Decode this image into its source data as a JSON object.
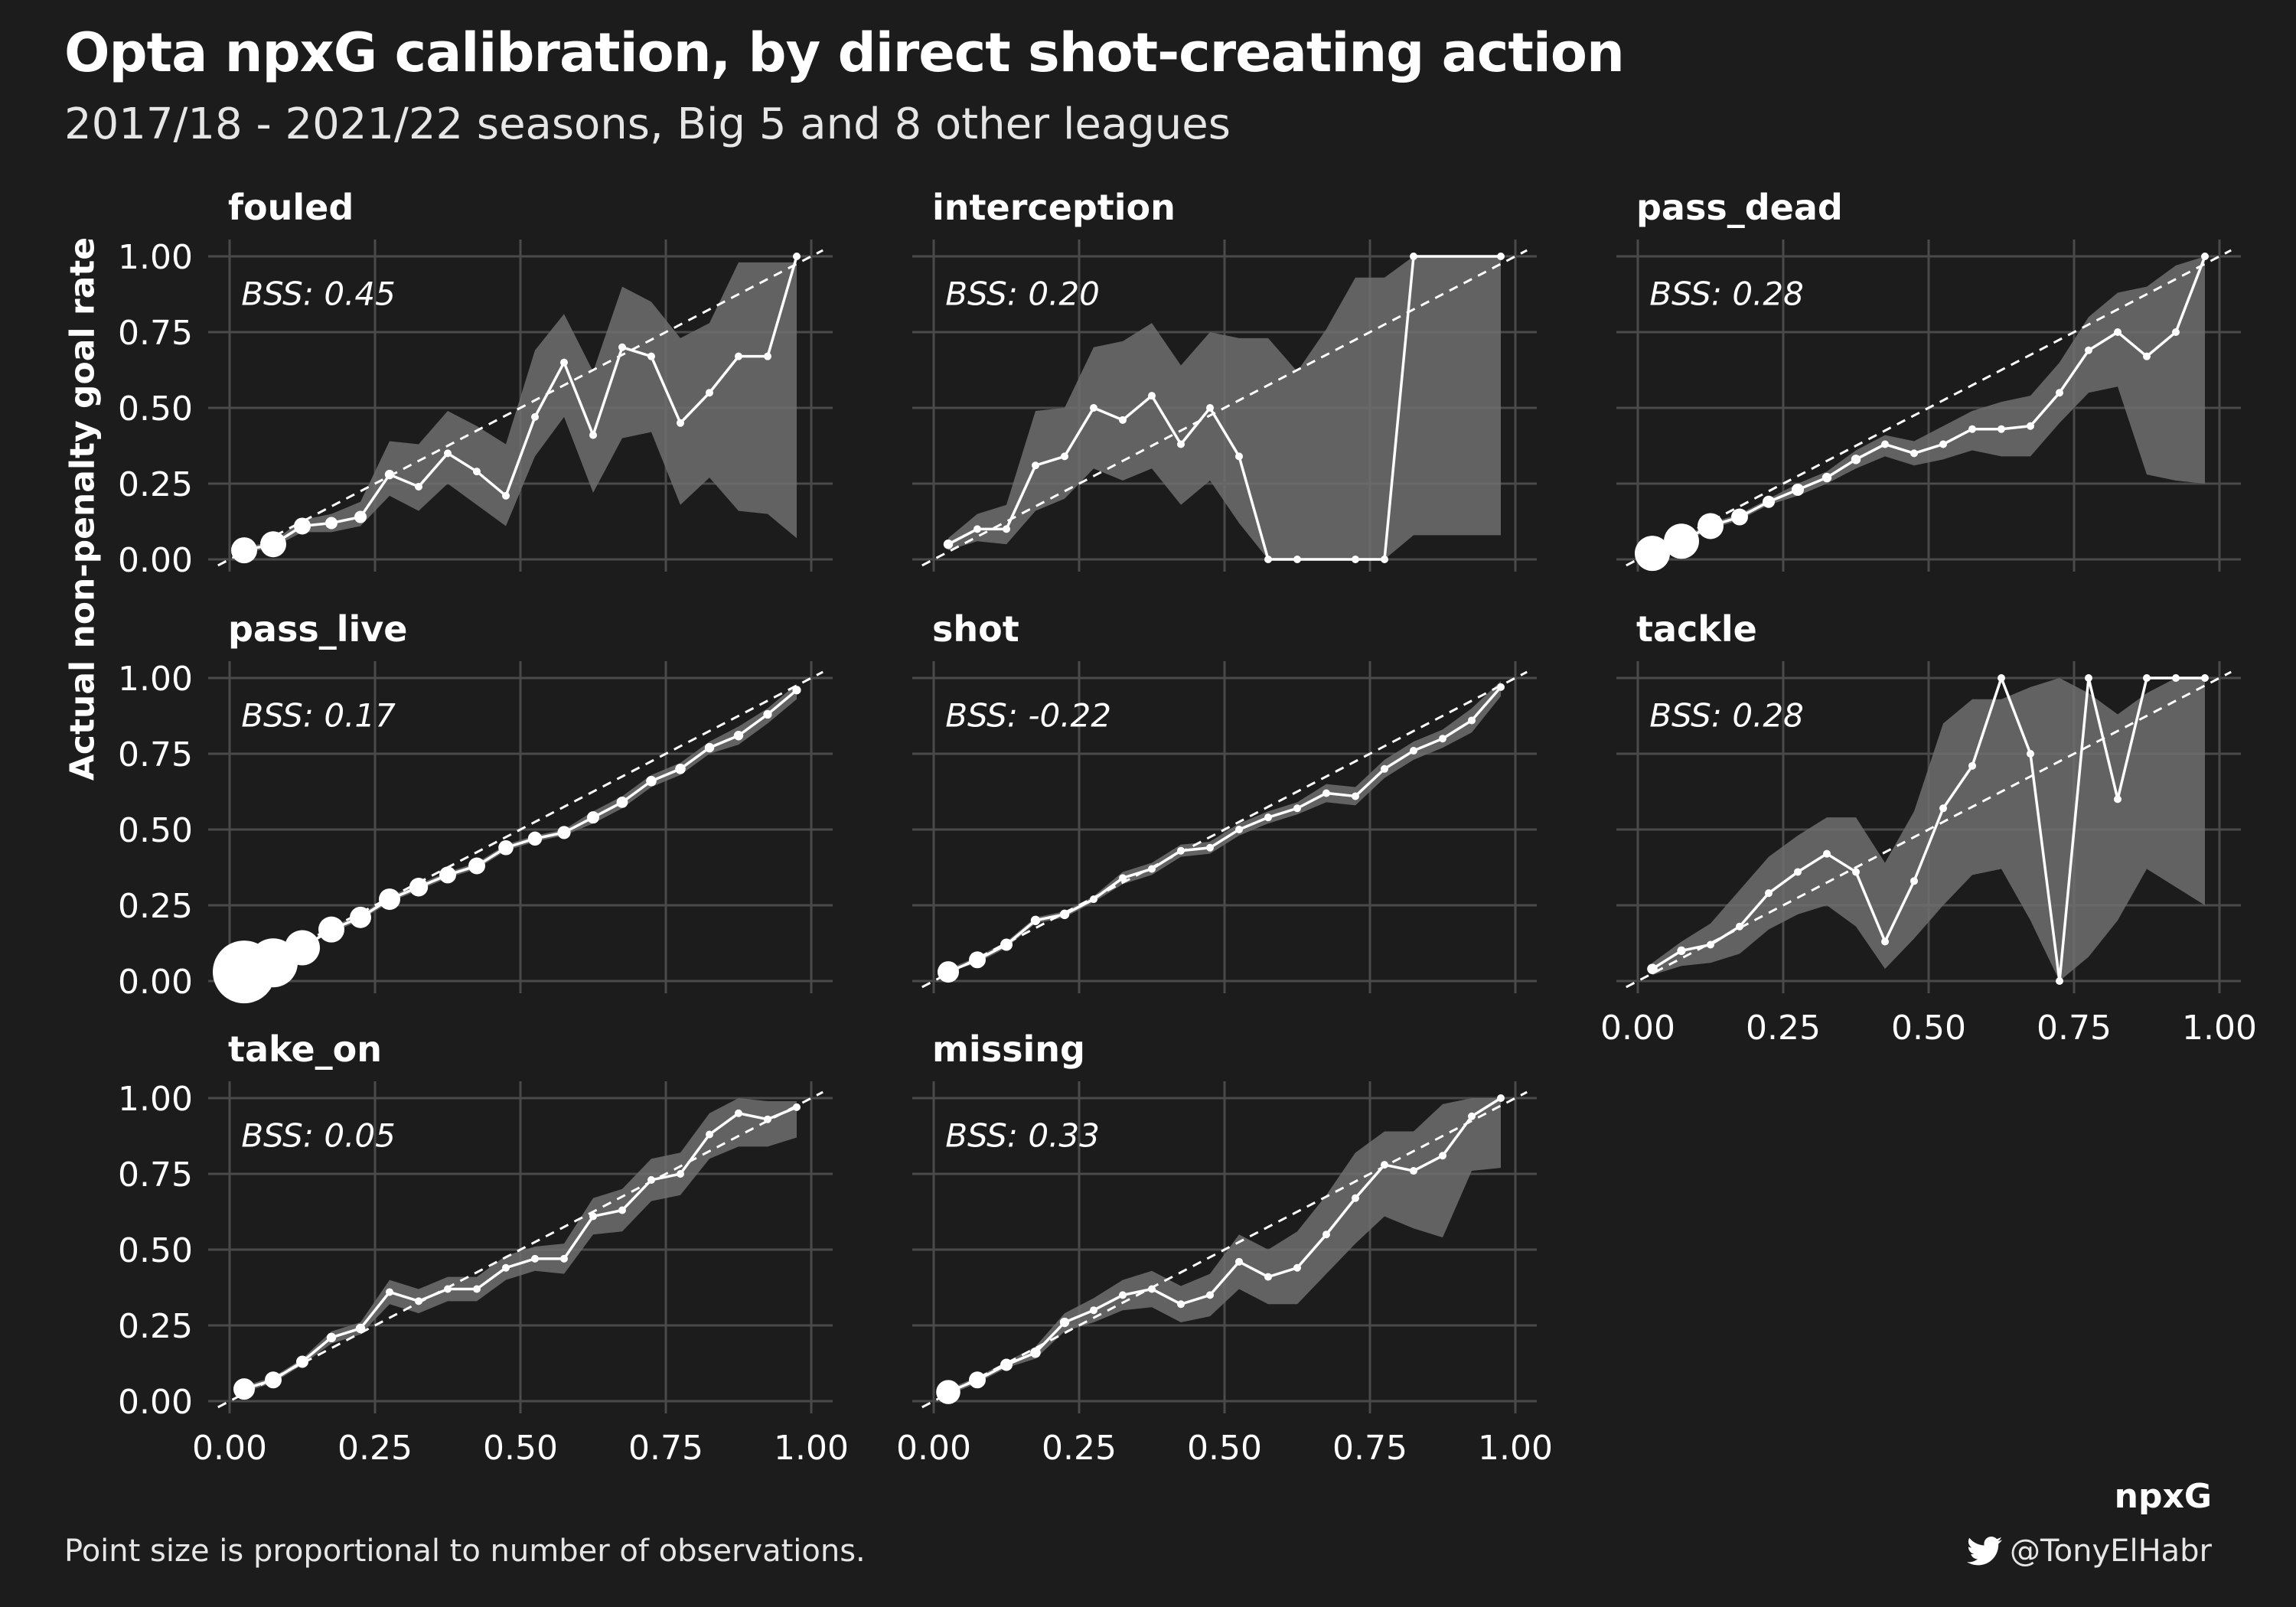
{
  "title": "Opta npxG calibration, by direct shot-creating action",
  "subtitle": "2017/18 - 2021/22 seasons, Big 5 and 8 other leagues",
  "caption": "Point size is proportional to number of observations.",
  "credit": "@TonyElHabr",
  "credit_icon": "twitter-icon",
  "colors": {
    "background": "#1c1c1c",
    "grid": "#4a4a4a",
    "line": "#ffffff",
    "ribbon": "#6e6e6e",
    "diagonal": "#ffffff"
  },
  "chart_data": {
    "type": "line",
    "xlabel": "npxG",
    "ylabel": "Actual non-penalty goal rate",
    "xlim": [
      0,
      1
    ],
    "ylim": [
      0,
      1
    ],
    "x_ticks": [
      "0.00",
      "0.25",
      "0.50",
      "0.75",
      "1.00"
    ],
    "y_ticks": [
      "0.00",
      "0.25",
      "0.50",
      "0.75",
      "1.00"
    ],
    "grid": true,
    "reference_line": "y = x (dashed)",
    "annotation_label": "BSS",
    "x": [
      0.025,
      0.075,
      0.125,
      0.175,
      0.225,
      0.275,
      0.325,
      0.375,
      0.425,
      0.475,
      0.525,
      0.575,
      0.625,
      0.675,
      0.725,
      0.775,
      0.825,
      0.875,
      0.925,
      0.975
    ],
    "panels": [
      {
        "name": "fouled",
        "bss": "BSS: 0.45",
        "y": [
          0.03,
          0.05,
          0.11,
          0.12,
          0.14,
          0.28,
          0.24,
          0.35,
          0.29,
          0.21,
          0.47,
          0.65,
          0.41,
          0.7,
          0.67,
          0.45,
          0.55,
          0.67,
          0.67,
          1.0
        ],
        "lower": [
          0.02,
          0.04,
          0.09,
          0.09,
          0.11,
          0.21,
          0.16,
          0.25,
          0.18,
          0.11,
          0.34,
          0.47,
          0.22,
          0.4,
          0.42,
          0.18,
          0.27,
          0.16,
          0.15,
          0.07
        ],
        "upper": [
          0.04,
          0.06,
          0.13,
          0.15,
          0.19,
          0.39,
          0.38,
          0.49,
          0.44,
          0.38,
          0.69,
          0.81,
          0.62,
          0.9,
          0.85,
          0.73,
          0.78,
          0.98,
          0.98,
          0.98
        ],
        "size": [
          3,
          3,
          2,
          1.5,
          1.5,
          1.2,
          1,
          1,
          1,
          1,
          1,
          1,
          1,
          1,
          1,
          1,
          1,
          1,
          1,
          1
        ]
      },
      {
        "name": "interception",
        "bss": "BSS: 0.20",
        "y": [
          0.05,
          0.1,
          0.1,
          0.31,
          0.34,
          0.5,
          0.46,
          0.54,
          0.38,
          0.5,
          0.34,
          0.0,
          0.0,
          0.0,
          0.0,
          0.0,
          1.0,
          1.0,
          1.0,
          1.0
        ],
        "lower": [
          0.03,
          0.06,
          0.05,
          0.16,
          0.2,
          0.3,
          0.26,
          0.3,
          0.18,
          0.26,
          0.12,
          0.0,
          0.0,
          0.0,
          0.0,
          0.0,
          0.08,
          0.08,
          0.08,
          0.08
        ],
        "upper": [
          0.07,
          0.15,
          0.18,
          0.49,
          0.5,
          0.7,
          0.72,
          0.78,
          0.64,
          0.75,
          0.73,
          0.73,
          0.62,
          0.76,
          0.93,
          0.93,
          1.0,
          1.0,
          1.0,
          1.0
        ],
        "size": [
          1.2,
          1,
          1,
          1,
          1,
          1,
          1,
          1,
          1,
          1,
          1,
          1,
          1,
          0,
          1,
          1,
          1,
          0,
          0,
          1
        ]
      },
      {
        "name": "pass_dead",
        "bss": "BSS: 0.28",
        "y": [
          0.02,
          0.06,
          0.11,
          0.14,
          0.19,
          0.23,
          0.27,
          0.33,
          0.38,
          0.35,
          0.38,
          0.43,
          0.43,
          0.44,
          0.55,
          0.69,
          0.75,
          0.67,
          0.75,
          1.0
        ],
        "lower": [
          0.01,
          0.05,
          0.1,
          0.13,
          0.18,
          0.21,
          0.25,
          0.3,
          0.34,
          0.31,
          0.33,
          0.36,
          0.34,
          0.34,
          0.45,
          0.55,
          0.57,
          0.28,
          0.26,
          0.25
        ],
        "upper": [
          0.03,
          0.07,
          0.12,
          0.15,
          0.2,
          0.25,
          0.29,
          0.36,
          0.41,
          0.39,
          0.44,
          0.49,
          0.52,
          0.54,
          0.65,
          0.8,
          0.88,
          0.9,
          0.97,
          1.0
        ],
        "size": [
          4,
          4,
          3,
          2,
          1.5,
          1.5,
          1.2,
          1.2,
          1,
          1,
          1,
          1,
          1,
          1,
          1,
          1,
          1,
          1,
          1,
          1
        ]
      },
      {
        "name": "pass_live",
        "bss": "BSS: 0.17",
        "y": [
          0.03,
          0.06,
          0.11,
          0.17,
          0.21,
          0.27,
          0.31,
          0.35,
          0.38,
          0.44,
          0.47,
          0.49,
          0.54,
          0.59,
          0.66,
          0.7,
          0.77,
          0.81,
          0.88,
          0.96
        ],
        "lower": [
          0.03,
          0.06,
          0.11,
          0.16,
          0.2,
          0.26,
          0.3,
          0.34,
          0.37,
          0.43,
          0.46,
          0.48,
          0.52,
          0.57,
          0.64,
          0.68,
          0.75,
          0.78,
          0.85,
          0.93
        ],
        "upper": [
          0.03,
          0.06,
          0.11,
          0.18,
          0.22,
          0.28,
          0.32,
          0.36,
          0.39,
          0.45,
          0.48,
          0.5,
          0.56,
          0.61,
          0.68,
          0.72,
          0.79,
          0.84,
          0.9,
          0.98
        ],
        "size": [
          7,
          5.5,
          4,
          3,
          2.5,
          2.5,
          2.2,
          2,
          2,
          1.8,
          1.7,
          1.6,
          1.5,
          1.4,
          1.3,
          1.3,
          1.2,
          1.2,
          1.1,
          1.1
        ]
      },
      {
        "name": "shot",
        "bss": "BSS: -0.22",
        "y": [
          0.03,
          0.07,
          0.12,
          0.2,
          0.22,
          0.27,
          0.34,
          0.37,
          0.43,
          0.44,
          0.5,
          0.54,
          0.57,
          0.62,
          0.61,
          0.7,
          0.76,
          0.8,
          0.86,
          0.97
        ],
        "lower": [
          0.03,
          0.06,
          0.11,
          0.19,
          0.21,
          0.26,
          0.32,
          0.35,
          0.41,
          0.42,
          0.48,
          0.52,
          0.55,
          0.59,
          0.58,
          0.67,
          0.73,
          0.77,
          0.82,
          0.94
        ],
        "upper": [
          0.04,
          0.08,
          0.13,
          0.21,
          0.23,
          0.28,
          0.36,
          0.39,
          0.45,
          0.46,
          0.52,
          0.56,
          0.59,
          0.65,
          0.64,
          0.73,
          0.79,
          0.83,
          0.9,
          0.99
        ],
        "size": [
          2.5,
          2,
          1.5,
          1.2,
          1.2,
          1,
          1,
          1,
          1,
          1,
          1,
          1,
          1,
          1,
          1,
          1,
          1,
          1,
          1,
          1
        ]
      },
      {
        "name": "tackle",
        "bss": "BSS: 0.28",
        "y": [
          0.04,
          0.1,
          0.12,
          0.18,
          0.29,
          0.36,
          0.42,
          0.36,
          0.13,
          0.33,
          0.57,
          0.71,
          1.0,
          0.75,
          0.0,
          1.0,
          0.6,
          1.0,
          1.0,
          1.0
        ],
        "lower": [
          0.02,
          0.05,
          0.06,
          0.09,
          0.17,
          0.22,
          0.25,
          0.18,
          0.04,
          0.14,
          0.25,
          0.35,
          0.37,
          0.2,
          0.0,
          0.08,
          0.2,
          0.37,
          0.31,
          0.25
        ],
        "upper": [
          0.06,
          0.13,
          0.19,
          0.3,
          0.41,
          0.48,
          0.54,
          0.54,
          0.39,
          0.56,
          0.85,
          0.93,
          0.93,
          0.97,
          1.0,
          0.95,
          0.88,
          0.95,
          1.0,
          1.0
        ],
        "size": [
          1.3,
          1.1,
          1,
          1,
          1,
          1,
          1,
          1,
          1,
          1,
          1,
          1,
          1,
          1,
          1,
          1,
          1,
          1,
          1,
          1
        ]
      },
      {
        "name": "take_on",
        "bss": "BSS: 0.05",
        "y": [
          0.04,
          0.07,
          0.13,
          0.21,
          0.24,
          0.36,
          0.33,
          0.37,
          0.37,
          0.44,
          0.47,
          0.47,
          0.61,
          0.63,
          0.73,
          0.75,
          0.88,
          0.95,
          0.93,
          0.97
        ],
        "lower": [
          0.03,
          0.06,
          0.12,
          0.19,
          0.22,
          0.32,
          0.29,
          0.33,
          0.33,
          0.4,
          0.43,
          0.42,
          0.55,
          0.56,
          0.66,
          0.68,
          0.8,
          0.84,
          0.84,
          0.87
        ],
        "upper": [
          0.05,
          0.08,
          0.14,
          0.23,
          0.26,
          0.4,
          0.37,
          0.41,
          0.41,
          0.48,
          0.51,
          0.52,
          0.67,
          0.7,
          0.8,
          0.82,
          0.95,
          1.0,
          0.99,
          0.99
        ],
        "size": [
          2.5,
          2,
          1.5,
          1.2,
          1.2,
          1,
          1,
          1,
          1,
          1,
          1,
          1,
          1,
          1,
          1,
          1,
          1,
          1,
          1,
          1
        ]
      },
      {
        "name": "missing",
        "bss": "BSS: 0.33",
        "y": [
          0.03,
          0.07,
          0.12,
          0.16,
          0.26,
          0.3,
          0.35,
          0.37,
          0.32,
          0.35,
          0.46,
          0.41,
          0.44,
          0.55,
          0.67,
          0.78,
          0.76,
          0.81,
          0.94,
          1.0
        ],
        "lower": [
          0.02,
          0.06,
          0.11,
          0.14,
          0.23,
          0.26,
          0.3,
          0.31,
          0.26,
          0.28,
          0.37,
          0.32,
          0.32,
          0.42,
          0.52,
          0.61,
          0.57,
          0.54,
          0.76,
          0.77
        ],
        "upper": [
          0.04,
          0.08,
          0.13,
          0.18,
          0.29,
          0.34,
          0.4,
          0.43,
          0.38,
          0.42,
          0.55,
          0.5,
          0.56,
          0.68,
          0.82,
          0.89,
          0.89,
          0.98,
          1.0,
          1.0
        ],
        "size": [
          2.8,
          2,
          1.5,
          1.3,
          1.2,
          1,
          1,
          1,
          1,
          1,
          1,
          1,
          1,
          1,
          1,
          1,
          1,
          1,
          1,
          1
        ]
      }
    ]
  }
}
